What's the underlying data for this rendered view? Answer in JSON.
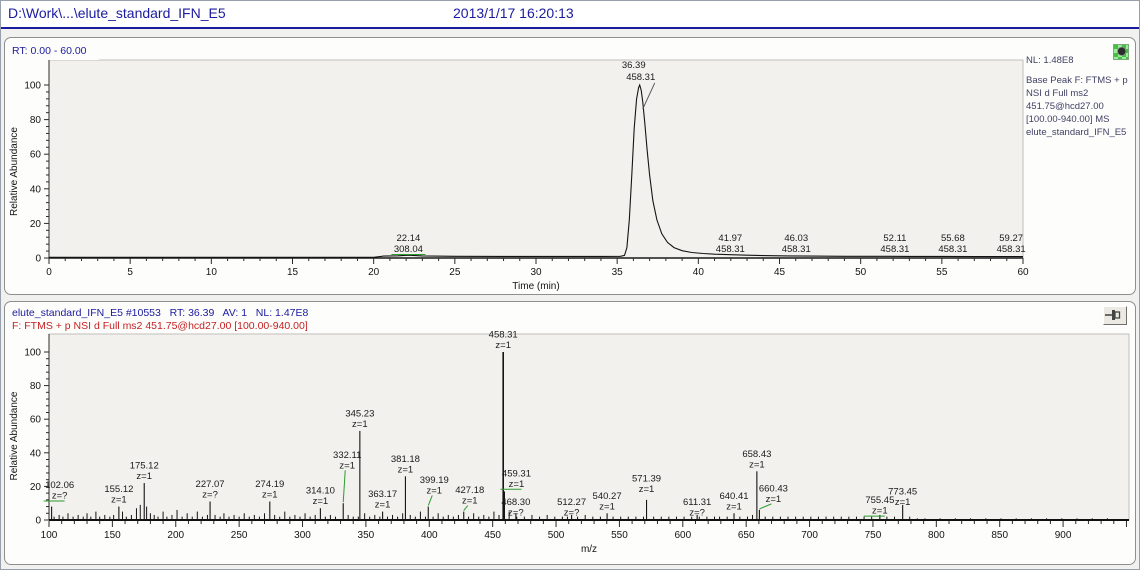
{
  "title_bar": {
    "file": "D:\\Work\\...\\elute_standard_IFN_E5",
    "datetime": "2013/1/17 16:20:13"
  },
  "colors": {
    "header_navy": "#1b1b9e",
    "filter_red": "#c42222",
    "annotation_green": "#2e9b2e",
    "plot_bg": "#f2f1ee",
    "trace": "#141414"
  },
  "chromatogram": {
    "rt_label": "RT: 0.00 - 60.00",
    "nl_label": "NL: 1.48E8",
    "legend": [
      "Base Peak F: FTMS + p",
      "NSI d Full ms2",
      "451.75@hcd27.00",
      "[100.00-940.00] MS",
      "elute_standard_IFN_E5"
    ]
  },
  "spectrum": {
    "header1": "elute_standard_IFN_E5 #10553   RT: 36.39   AV: 1   NL: 1.47E8",
    "header2": "F: FTMS + p NSI d Full ms2 451.75@hcd27.00 [100.00-940.00]",
    "pin_button": "pin"
  },
  "chart_data": [
    {
      "type": "line",
      "title": "RT: 0.00 - 60.00",
      "xlabel": "Time (min)",
      "ylabel": "Relative Abundance",
      "xlim": [
        0,
        60
      ],
      "ylim": [
        0,
        100
      ],
      "x_ticks": [
        0,
        5,
        10,
        15,
        20,
        25,
        30,
        35,
        40,
        45,
        50,
        55,
        60
      ],
      "y_ticks": [
        0,
        20,
        40,
        60,
        80,
        100
      ],
      "trace": [
        [
          0,
          0.4
        ],
        [
          5,
          0.4
        ],
        [
          10,
          0.4
        ],
        [
          15,
          0.4
        ],
        [
          20,
          0.4
        ],
        [
          20.6,
          1.1
        ],
        [
          21.5,
          1.3
        ],
        [
          22.14,
          1.6
        ],
        [
          23,
          1.2
        ],
        [
          25,
          1.0
        ],
        [
          28,
          0.9
        ],
        [
          31,
          0.9
        ],
        [
          34,
          0.9
        ],
        [
          35.2,
          1.0
        ],
        [
          35.45,
          1.5
        ],
        [
          35.6,
          6
        ],
        [
          35.75,
          22
        ],
        [
          35.9,
          48
        ],
        [
          36.05,
          75
        ],
        [
          36.2,
          92
        ],
        [
          36.32,
          98.5
        ],
        [
          36.39,
          100
        ],
        [
          36.48,
          97
        ],
        [
          36.58,
          90
        ],
        [
          36.7,
          78
        ],
        [
          36.85,
          62
        ],
        [
          37.0,
          48
        ],
        [
          37.2,
          33
        ],
        [
          37.45,
          22
        ],
        [
          37.75,
          14
        ],
        [
          38.1,
          9
        ],
        [
          38.5,
          6
        ],
        [
          39,
          4.2
        ],
        [
          39.6,
          3.2
        ],
        [
          40.3,
          2.6
        ],
        [
          41,
          2.2
        ],
        [
          41.97,
          1.9
        ],
        [
          43,
          1.6
        ],
        [
          44,
          1.4
        ],
        [
          45.5,
          1.2
        ],
        [
          47,
          1.1
        ],
        [
          49,
          1.0
        ],
        [
          51,
          1.0
        ],
        [
          53,
          0.9
        ],
        [
          55,
          0.9
        ],
        [
          57,
          0.8
        ],
        [
          60,
          0.8
        ]
      ],
      "peak_labels": [
        {
          "rt": "36.39",
          "mass": "458.31",
          "pos": "apex"
        },
        {
          "rt": "22.14",
          "mass": "308.04",
          "pos": "base",
          "underline": true
        },
        {
          "rt": "41.97",
          "mass": "458.31",
          "pos": "base"
        },
        {
          "rt": "46.03",
          "mass": "458.31",
          "pos": "base"
        },
        {
          "rt": "52.11",
          "mass": "458.31",
          "pos": "base"
        },
        {
          "rt": "55.68",
          "mass": "458.31",
          "pos": "base"
        },
        {
          "rt": "59.27",
          "mass": "458.31",
          "pos": "base"
        }
      ]
    },
    {
      "type": "bar",
      "xlabel": "m/z",
      "ylabel": "Relative Abundance",
      "xlim": [
        100,
        952
      ],
      "ylim": [
        0,
        100
      ],
      "x_ticks": [
        100,
        150,
        200,
        250,
        300,
        350,
        400,
        450,
        500,
        550,
        600,
        650,
        700,
        750,
        800,
        850,
        900
      ],
      "y_ticks": [
        0,
        20,
        40,
        60,
        80,
        100
      ],
      "labeled_peaks": [
        {
          "label": "102.06",
          "z": "z=?",
          "h": 8,
          "lh": 11,
          "dx": 8,
          "underline": true
        },
        {
          "label": "155.12",
          "z": "z=1",
          "h": 8
        },
        {
          "label": "175.12",
          "z": "z=1",
          "h": 22
        },
        {
          "label": "227.07",
          "z": "z=?",
          "h": 11
        },
        {
          "label": "274.19",
          "z": "z=1",
          "h": 11
        },
        {
          "label": "314.10",
          "z": "z=1",
          "h": 7
        },
        {
          "label": "332.11",
          "z": "z=1",
          "h": 10,
          "lh": 29,
          "dx": 4,
          "green": true
        },
        {
          "label": "345.23",
          "z": "z=1",
          "h": 53
        },
        {
          "label": "363.17",
          "z": "z=1",
          "h": 5
        },
        {
          "label": "381.18",
          "z": "z=1",
          "h": 26
        },
        {
          "label": "399.19",
          "z": "z=1",
          "h": 8,
          "lh": 14,
          "dx": 6,
          "green": true
        },
        {
          "label": "427.18",
          "z": "z=1",
          "h": 5,
          "lh": 8,
          "dx": 6,
          "green": true
        },
        {
          "label": "458.31",
          "z": "z=1",
          "h": 100
        },
        {
          "label": "459.31",
          "z": "z=1",
          "h": 17,
          "lh": 18,
          "dx": 12,
          "underline": true
        },
        {
          "label": "468.30",
          "z": "z=?",
          "h": 4,
          "lh": 1
        },
        {
          "label": "512.27",
          "z": "z=?",
          "h": 3,
          "lh": 1
        },
        {
          "label": "540.27",
          "z": "z=1",
          "h": 4
        },
        {
          "label": "571.39",
          "z": "z=1",
          "h": 12,
          "lh": 15
        },
        {
          "label": "611.31",
          "z": "z=?",
          "h": 3,
          "lh": 1
        },
        {
          "label": "640.41",
          "z": "z=1",
          "h": 4
        },
        {
          "label": "658.43",
          "z": "z=1",
          "h": 29
        },
        {
          "label": "660.43",
          "z": "z=1",
          "h": 6,
          "lh": 9,
          "dx": 14,
          "green": true
        },
        {
          "label": "755.45",
          "z": "z=1",
          "h": 3,
          "lh": 2,
          "underline": true
        },
        {
          "label": "773.45",
          "z": "z=1",
          "h": 9,
          "lh": 7
        }
      ],
      "minor_peaks": [
        [
          104,
          2
        ],
        [
          108,
          3
        ],
        [
          111,
          2
        ],
        [
          115,
          4
        ],
        [
          119,
          2
        ],
        [
          123,
          3
        ],
        [
          127,
          2
        ],
        [
          130,
          4
        ],
        [
          133,
          2
        ],
        [
          137,
          5
        ],
        [
          140,
          2
        ],
        [
          144,
          3
        ],
        [
          148,
          2
        ],
        [
          151,
          3
        ],
        [
          158,
          5
        ],
        [
          161,
          2
        ],
        [
          165,
          3
        ],
        [
          169,
          7
        ],
        [
          172,
          9
        ],
        [
          177,
          8
        ],
        [
          180,
          4
        ],
        [
          183,
          3
        ],
        [
          186,
          2
        ],
        [
          190,
          5
        ],
        [
          193,
          2
        ],
        [
          197,
          3
        ],
        [
          201,
          6
        ],
        [
          205,
          2
        ],
        [
          209,
          4
        ],
        [
          213,
          2
        ],
        [
          217,
          5
        ],
        [
          221,
          2
        ],
        [
          225,
          3
        ],
        [
          231,
          3
        ],
        [
          235,
          2
        ],
        [
          238,
          4
        ],
        [
          242,
          2
        ],
        [
          246,
          3
        ],
        [
          250,
          2
        ],
        [
          254,
          4
        ],
        [
          258,
          2
        ],
        [
          262,
          3
        ],
        [
          266,
          2
        ],
        [
          270,
          4
        ],
        [
          278,
          3
        ],
        [
          282,
          2
        ],
        [
          286,
          5
        ],
        [
          290,
          2
        ],
        [
          294,
          3
        ],
        [
          298,
          2
        ],
        [
          302,
          4
        ],
        [
          306,
          2
        ],
        [
          310,
          3
        ],
        [
          318,
          2
        ],
        [
          322,
          3
        ],
        [
          326,
          2
        ],
        [
          336,
          3
        ],
        [
          340,
          2
        ],
        [
          344,
          2
        ],
        [
          349,
          4
        ],
        [
          353,
          2
        ],
        [
          357,
          3
        ],
        [
          361,
          2
        ],
        [
          367,
          2
        ],
        [
          371,
          3
        ],
        [
          375,
          2
        ],
        [
          379,
          4
        ],
        [
          385,
          3
        ],
        [
          389,
          2
        ],
        [
          393,
          5
        ],
        [
          397,
          2
        ],
        [
          403,
          2
        ],
        [
          407,
          4
        ],
        [
          411,
          2
        ],
        [
          415,
          3
        ],
        [
          419,
          2
        ],
        [
          423,
          3
        ],
        [
          431,
          2
        ],
        [
          435,
          4
        ],
        [
          439,
          2
        ],
        [
          443,
          3
        ],
        [
          447,
          2
        ],
        [
          451,
          5
        ],
        [
          455,
          3
        ],
        [
          463,
          5
        ],
        [
          469,
          2
        ],
        [
          475,
          2
        ],
        [
          481,
          3
        ],
        [
          487,
          2
        ],
        [
          493,
          3
        ],
        [
          499,
          2
        ],
        [
          505,
          2
        ],
        [
          509,
          2
        ],
        [
          517,
          2
        ],
        [
          523,
          3
        ],
        [
          529,
          2
        ],
        [
          535,
          2
        ],
        [
          545,
          2
        ],
        [
          551,
          2
        ],
        [
          557,
          2
        ],
        [
          563,
          2
        ],
        [
          569,
          2
        ],
        [
          577,
          2
        ],
        [
          583,
          2
        ],
        [
          589,
          2
        ],
        [
          595,
          2
        ],
        [
          601,
          2
        ],
        [
          607,
          2
        ],
        [
          613,
          2
        ],
        [
          619,
          2
        ],
        [
          625,
          2
        ],
        [
          629,
          2
        ],
        [
          635,
          2
        ],
        [
          645,
          2
        ],
        [
          651,
          2
        ],
        [
          655,
          3
        ],
        [
          665,
          2
        ],
        [
          671,
          2
        ],
        [
          677,
          2
        ],
        [
          683,
          2
        ],
        [
          689,
          2
        ],
        [
          695,
          2
        ],
        [
          701,
          2
        ],
        [
          707,
          2
        ],
        [
          713,
          2
        ],
        [
          719,
          2
        ],
        [
          725,
          2
        ],
        [
          731,
          2
        ],
        [
          737,
          2
        ],
        [
          743,
          2
        ],
        [
          749,
          2
        ],
        [
          761,
          2
        ],
        [
          767,
          2
        ],
        [
          779,
          2
        ],
        [
          785,
          1
        ],
        [
          791,
          1
        ],
        [
          803,
          1
        ],
        [
          815,
          1
        ],
        [
          827,
          1
        ],
        [
          839,
          1
        ],
        [
          851,
          1
        ],
        [
          863,
          1
        ],
        [
          875,
          1
        ],
        [
          887,
          1
        ],
        [
          899,
          1
        ],
        [
          911,
          1
        ],
        [
          923,
          1
        ],
        [
          935,
          1
        ]
      ]
    }
  ]
}
